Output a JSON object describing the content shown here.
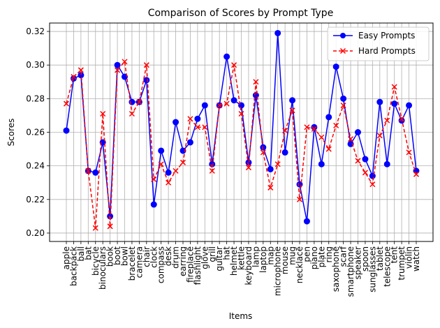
{
  "chart_data": {
    "type": "line",
    "title": "Comparison of Scores by Prompt Type",
    "xlabel": "Items",
    "ylabel": "Scores",
    "ylim": [
      0.195,
      0.325
    ],
    "yticks": [
      0.2,
      0.22,
      0.24,
      0.26,
      0.28,
      0.3,
      0.32
    ],
    "ytick_labels": [
      "0.20",
      "0.22",
      "0.24",
      "0.26",
      "0.28",
      "0.30",
      "0.32"
    ],
    "grid": true,
    "legend": "top-right",
    "categories": [
      "apple",
      "backpack",
      "ball",
      "bat",
      "bicycle",
      "binoculars",
      "book",
      "boot",
      "bowl",
      "bracelet",
      "camera",
      "chair",
      "clock",
      "compass",
      "desk",
      "drum",
      "earring",
      "fireplace",
      "flashlight",
      "glove",
      "grill",
      "guitar",
      "hat",
      "helmet",
      "kettle",
      "keyboard",
      "lamp",
      "laptop",
      "map",
      "microphone",
      "mouse",
      "mug",
      "necklace",
      "pen",
      "piano",
      "plate",
      "ring",
      "saxophone",
      "scarf",
      "smartphone",
      "speaker",
      "spoon",
      "sunglasses",
      "tablet",
      "telescope",
      "tent",
      "trumpet",
      "violin",
      "watch"
    ],
    "series": [
      {
        "name": "Easy Prompts",
        "color": "#0000ff",
        "linestyle": "solid",
        "marker": "circle",
        "values": [
          0.261,
          0.292,
          0.294,
          0.237,
          0.236,
          0.254,
          0.21,
          0.3,
          0.293,
          0.278,
          0.278,
          0.291,
          0.217,
          0.249,
          0.236,
          0.266,
          0.249,
          0.254,
          0.268,
          0.276,
          0.241,
          0.276,
          0.305,
          0.279,
          0.276,
          0.242,
          0.282,
          0.251,
          0.238,
          0.319,
          0.248,
          0.279,
          0.229,
          0.207,
          0.263,
          0.241,
          0.269,
          0.299,
          0.28,
          0.253,
          0.26,
          0.244,
          0.234,
          0.278,
          0.241,
          0.277,
          0.267,
          0.276,
          0.237
        ]
      },
      {
        "name": "Hard Prompts",
        "color": "#ff0000",
        "linestyle": "dashed",
        "marker": "x",
        "values": [
          0.277,
          0.293,
          0.297,
          0.237,
          0.203,
          0.271,
          0.204,
          0.297,
          0.302,
          0.271,
          0.278,
          0.3,
          0.232,
          0.241,
          0.23,
          0.237,
          0.242,
          0.268,
          0.263,
          0.263,
          0.237,
          0.276,
          0.277,
          0.3,
          0.271,
          0.239,
          0.29,
          0.248,
          0.227,
          0.241,
          0.261,
          0.273,
          0.22,
          0.263,
          0.262,
          0.257,
          0.25,
          0.264,
          0.276,
          0.256,
          0.243,
          0.236,
          0.229,
          0.258,
          0.267,
          0.287,
          0.268,
          0.248,
          0.235
        ]
      }
    ]
  }
}
